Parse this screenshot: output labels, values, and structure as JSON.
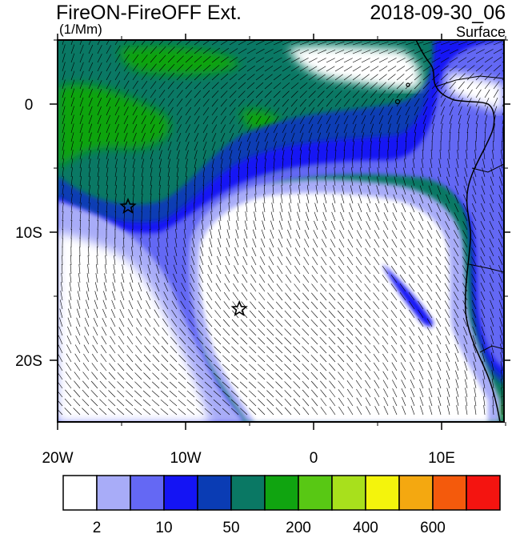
{
  "title": "FireON-FireOFF Ext.",
  "units": "(1/Mm)",
  "datetime": "2018-09-30_06",
  "level": "Surface",
  "lon_ticks": [
    "20W",
    "10W",
    "0",
    "10E"
  ],
  "lat_ticks": [
    "0",
    "10S",
    "20S"
  ],
  "markers": [
    {
      "name": "marker-star-1",
      "lon": -14.5,
      "lat": -8.0
    },
    {
      "name": "marker-star-2",
      "lon": -5.8,
      "lat": -16.0
    }
  ],
  "colorbar": {
    "colors": [
      "#ffffff",
      "#a8acf8",
      "#6468f4",
      "#1414f4",
      "#0a3cb4",
      "#0a7864",
      "#10a410",
      "#58c814",
      "#a8e01c",
      "#f4f40c",
      "#f4a810",
      "#f45a0c",
      "#f41410"
    ],
    "labels": [
      "2",
      "10",
      "50",
      "200",
      "400",
      "600"
    ]
  }
}
